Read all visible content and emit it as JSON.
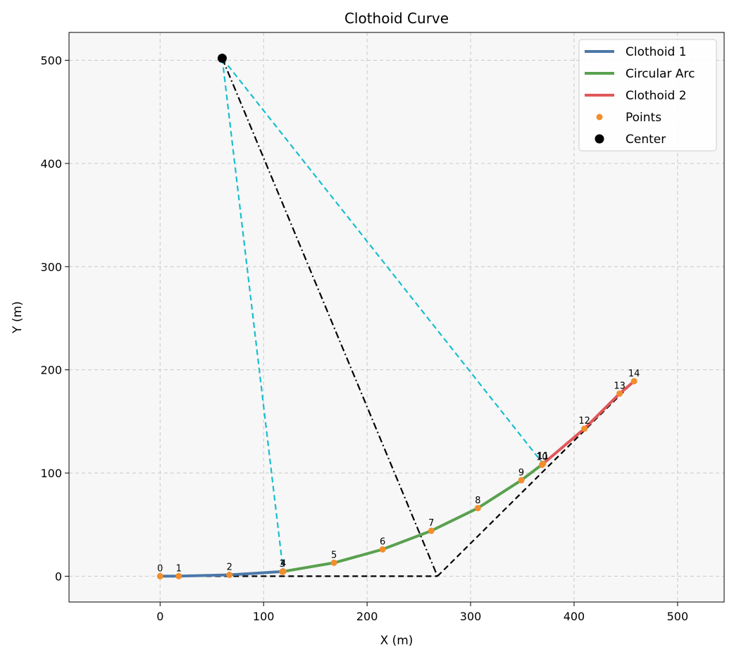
{
  "chart_data": {
    "type": "line",
    "title": "Clothoid Curve",
    "xlabel": "X (m)",
    "ylabel": "Y (m)",
    "xlim": [
      -88,
      545
    ],
    "ylim": [
      -25,
      527
    ],
    "xticks": [
      0,
      100,
      200,
      300,
      400,
      500
    ],
    "yticks": [
      0,
      100,
      200,
      300,
      400,
      500
    ],
    "grid": true,
    "legend_position": "top-right",
    "colors": {
      "clothoid1": "#4c78a8",
      "arc": "#59a14f",
      "clothoid2": "#e15759",
      "points": "#f28e2b",
      "center": "#000000",
      "radius_lines": "#17becf",
      "tangent_lines": "#000000",
      "plot_bg": "#f7f7f7"
    },
    "series": [
      {
        "name": "Clothoid 1",
        "kind": "line",
        "points": [
          [
            0,
            0
          ],
          [
            18,
            0.1
          ],
          [
            67,
            1.3
          ],
          [
            119,
            4.6
          ]
        ]
      },
      {
        "name": "Circular Arc",
        "kind": "line",
        "points": [
          [
            119,
            4.6
          ],
          [
            168,
            13
          ],
          [
            215,
            26
          ],
          [
            262,
            44
          ],
          [
            307,
            66
          ],
          [
            349,
            93
          ],
          [
            370,
            109
          ]
        ]
      },
      {
        "name": "Clothoid 2",
        "kind": "line",
        "points": [
          [
            370,
            109
          ],
          [
            410,
            143
          ],
          [
            444,
            177
          ],
          [
            458,
            189
          ]
        ]
      },
      {
        "name": "Points",
        "kind": "points"
      },
      {
        "name": "Center",
        "kind": "center",
        "point": [
          60,
          502
        ]
      }
    ],
    "points": [
      {
        "label": "0",
        "x": 0,
        "y": 0
      },
      {
        "label": "1",
        "x": 18,
        "y": 0.1
      },
      {
        "label": "2",
        "x": 67,
        "y": 1.3
      },
      {
        "label": "3",
        "x": 118,
        "y": 4.3
      },
      {
        "label": "4",
        "x": 119,
        "y": 4.6
      },
      {
        "label": "5",
        "x": 168,
        "y": 13
      },
      {
        "label": "6",
        "x": 215,
        "y": 26
      },
      {
        "label": "7",
        "x": 262,
        "y": 44
      },
      {
        "label": "8",
        "x": 307,
        "y": 66
      },
      {
        "label": "9",
        "x": 349,
        "y": 93
      },
      {
        "label": "10",
        "x": 369,
        "y": 108
      },
      {
        "label": "11",
        "x": 370,
        "y": 109
      },
      {
        "label": "12",
        "x": 410,
        "y": 143
      },
      {
        "label": "13",
        "x": 444,
        "y": 177
      },
      {
        "label": "14",
        "x": 458,
        "y": 189
      }
    ],
    "radius_lines": [
      [
        [
          60,
          502
        ],
        [
          119,
          4.6
        ]
      ],
      [
        [
          60,
          502
        ],
        [
          370,
          109
        ]
      ]
    ],
    "bisector_line": [
      [
        60,
        502
      ],
      [
        268,
        0
      ]
    ],
    "tangent_lines": [
      [
        [
          0,
          0
        ],
        [
          268,
          0
        ]
      ],
      [
        [
          268,
          0
        ],
        [
          458,
          189
        ]
      ]
    ]
  }
}
